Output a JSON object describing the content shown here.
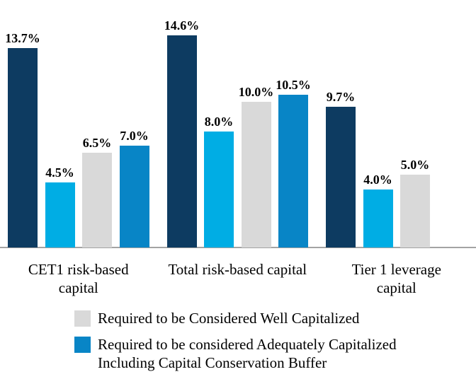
{
  "chart_data": {
    "type": "bar",
    "categories": [
      {
        "lines": [
          "CET1 risk-based",
          "capital"
        ]
      },
      {
        "lines": [
          "Total risk-based capital"
        ]
      },
      {
        "lines": [
          "Tier 1 leverage",
          "capital"
        ]
      }
    ],
    "series": [
      {
        "color": "#0D3B61",
        "values": [
          13.7,
          14.6,
          9.7
        ],
        "labels": [
          "13.7%",
          "14.6%",
          "9.7%"
        ]
      },
      {
        "color": "#00ADE4",
        "values": [
          4.5,
          8.0,
          4.0
        ],
        "labels": [
          "4.5%",
          "8.0%",
          "4.0%"
        ]
      },
      {
        "color": "#D9D9D9",
        "values": [
          6.5,
          10.0,
          5.0
        ],
        "labels": [
          "6.5%",
          "10.0%",
          "5.0%"
        ]
      },
      {
        "color": "#0885C6",
        "values": [
          7.0,
          10.5,
          null
        ],
        "labels": [
          "7.0%",
          "10.5%",
          null
        ]
      }
    ],
    "legend": [
      {
        "color": "#D9D9D9",
        "lines": [
          "Required to be Considered Well Capitalized"
        ]
      },
      {
        "color": "#0885C6",
        "lines": [
          "Required to be considered Adequately Capitalized",
          "Including Capital Conservation Buffer"
        ]
      }
    ],
    "axis": {
      "baseline_color": "#a3a3a3"
    },
    "ylim": [
      0,
      16
    ],
    "grid": false,
    "legend_position": "bottom",
    "title": "",
    "xlabel": "",
    "ylabel": ""
  }
}
